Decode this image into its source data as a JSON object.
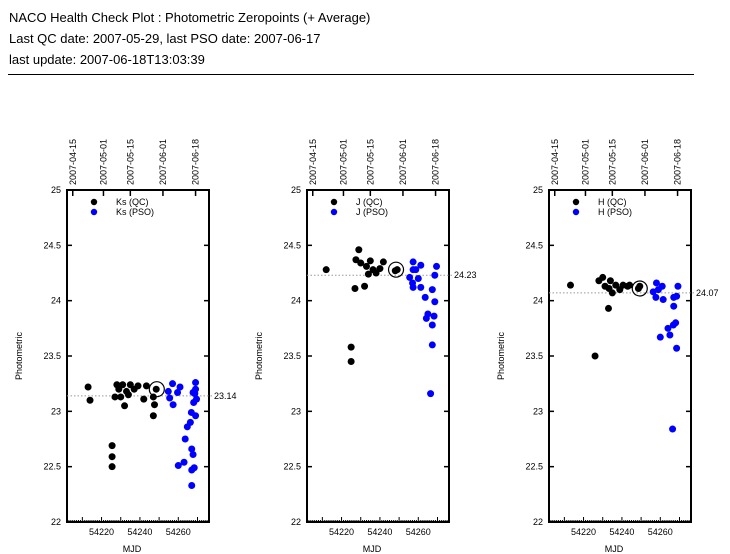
{
  "header": {
    "title": "NACO Health Check Plot : Photometric Zeropoints (+ Average)",
    "dates": "Last QC date: 2007-05-29, last PSO date: 2007-06-17",
    "update": "last update: 2007-06-18T13:03:39"
  },
  "colors": {
    "qc": "#000000",
    "pso": "#0000ff",
    "avg_line": "#999999"
  },
  "chart_data": [
    {
      "type": "scatter",
      "band": "Ks",
      "xlabel": "MJD",
      "ylabel": "Photometric",
      "xlim": [
        54202,
        54276
      ],
      "ylim": [
        22,
        25
      ],
      "yticks": [
        22,
        22.5,
        23,
        23.5,
        24,
        24.5,
        25
      ],
      "ytick_labels": [
        "22",
        "22.5",
        "23",
        "23.5",
        "24",
        "24.5",
        "25"
      ],
      "xticks": [
        54220,
        54240,
        54260
      ],
      "xtick_labels": [
        "54220",
        "54240",
        "54260"
      ],
      "top_ticks": [
        {
          "mjd": 54205,
          "label": "2007-04-15"
        },
        {
          "mjd": 54221,
          "label": "2007-05-01"
        },
        {
          "mjd": 54235,
          "label": "2007-05-15"
        },
        {
          "mjd": 54252,
          "label": "2007-06-01"
        },
        {
          "mjd": 54269,
          "label": "2007-06-18"
        }
      ],
      "legend": [
        "Ks (QC)",
        "Ks (PSO)"
      ],
      "legend_position": "top-left",
      "average": 23.14,
      "average_label": "23.14",
      "average_marker": [
        54248.8,
        23.2
      ],
      "series": [
        {
          "name": "Ks (QC)",
          "points": [
            [
              54213,
              23.22
            ],
            [
              54214,
              23.1
            ],
            [
              54225.5,
              22.69
            ],
            [
              54225.5,
              22.59
            ],
            [
              54225.5,
              22.5
            ],
            [
              54227,
              23.13
            ],
            [
              54228,
              23.24
            ],
            [
              54230,
              23.13
            ],
            [
              54232,
              23.05
            ],
            [
              54229,
              23.2
            ],
            [
              54231,
              23.24
            ],
            [
              54233,
              23.18
            ],
            [
              54234,
              23.15
            ],
            [
              54235,
              23.24
            ],
            [
              54237,
              23.2
            ],
            [
              54239,
              23.23
            ],
            [
              54242,
              23.11
            ],
            [
              54243.4,
              23.23
            ],
            [
              54247,
              23.13
            ],
            [
              54247.6,
              23.06
            ],
            [
              54247,
              22.96
            ],
            [
              54248.5,
              23.2
            ]
          ]
        },
        {
          "name": "Ks (PSO)",
          "points": [
            [
              54254.8,
              23.18
            ],
            [
              54257,
              23.25
            ],
            [
              54257.3,
              23.06
            ],
            [
              54255.5,
              23.12
            ],
            [
              54259.6,
              23.17
            ],
            [
              54260.9,
              23.22
            ],
            [
              54260,
              22.51
            ],
            [
              54263,
              22.54
            ],
            [
              54263.6,
              22.75
            ],
            [
              54264.7,
              22.86
            ],
            [
              54266.3,
              22.9
            ],
            [
              54267,
              22.66
            ],
            [
              54267.7,
              22.61
            ],
            [
              54267,
              22.47
            ],
            [
              54268.3,
              22.49
            ],
            [
              54267,
              22.33
            ],
            [
              54266.8,
              22.99
            ],
            [
              54269,
              22.96
            ],
            [
              54268,
              23.08
            ],
            [
              54268.6,
              23.16
            ],
            [
              54267.7,
              23.17
            ],
            [
              54269,
              23.26
            ],
            [
              54269,
              23.2
            ],
            [
              54269.5,
              23.11
            ]
          ]
        }
      ]
    },
    {
      "type": "scatter",
      "band": "J",
      "xlabel": "MJD",
      "ylabel": "Photometric",
      "xlim": [
        54202,
        54276
      ],
      "ylim": [
        22,
        25
      ],
      "yticks": [
        22,
        22.5,
        23,
        23.5,
        24,
        24.5,
        25
      ],
      "ytick_labels": [
        "22",
        "22.5",
        "23",
        "23.5",
        "24",
        "24.5",
        "25"
      ],
      "xticks": [
        54220,
        54240,
        54260
      ],
      "xtick_labels": [
        "54220",
        "54240",
        "54260"
      ],
      "top_ticks": [
        {
          "mjd": 54205,
          "label": "2007-04-15"
        },
        {
          "mjd": 54221,
          "label": "2007-05-01"
        },
        {
          "mjd": 54235,
          "label": "2007-05-15"
        },
        {
          "mjd": 54252,
          "label": "2007-06-01"
        },
        {
          "mjd": 54269,
          "label": "2007-06-18"
        }
      ],
      "legend": [
        "J (QC)",
        "J (PSO)"
      ],
      "legend_position": "top-left",
      "average": 24.23,
      "average_label": "24.23",
      "average_marker": [
        54248.4,
        24.28
      ],
      "series": [
        {
          "name": "J (QC)",
          "points": [
            [
              54212,
              24.28
            ],
            [
              54225,
              23.58
            ],
            [
              54225,
              23.45
            ],
            [
              54227,
              24.11
            ],
            [
              54229,
              24.46
            ],
            [
              54227.5,
              24.37
            ],
            [
              54230,
              24.34
            ],
            [
              54232,
              24.13
            ],
            [
              54233,
              24.31
            ],
            [
              54234,
              24.24
            ],
            [
              54235,
              24.36
            ],
            [
              54236.4,
              24.28
            ],
            [
              54238,
              24.25
            ],
            [
              54240,
              24.29
            ],
            [
              54241.8,
              24.35
            ],
            [
              54248,
              24.27
            ],
            [
              54249,
              24.28
            ]
          ]
        },
        {
          "name": "J (PSO)",
          "points": [
            [
              54257.3,
              24.35
            ],
            [
              54257.3,
              24.28
            ],
            [
              54255.5,
              24.21
            ],
            [
              54257,
              24.16
            ],
            [
              54257.3,
              24.12
            ],
            [
              54258.7,
              24.28
            ],
            [
              54260,
              24.2
            ],
            [
              54261.3,
              24.32
            ],
            [
              54261.3,
              24.12
            ],
            [
              54263.6,
              24.03
            ],
            [
              54265,
              23.88
            ],
            [
              54264.2,
              23.84
            ],
            [
              54267.3,
              24.1
            ],
            [
              54267.3,
              23.78
            ],
            [
              54267.3,
              23.6
            ],
            [
              54266.4,
              23.16
            ],
            [
              54268.2,
              23.86
            ],
            [
              54268.6,
              23.99
            ],
            [
              54268.6,
              24.23
            ],
            [
              54269.5,
              24.31
            ]
          ]
        }
      ]
    },
    {
      "type": "scatter",
      "band": "H",
      "xlabel": "MJD",
      "ylabel": "Photometric",
      "xlim": [
        54202,
        54276
      ],
      "ylim": [
        22,
        25
      ],
      "yticks": [
        22,
        22.5,
        23,
        23.5,
        24,
        24.5,
        25
      ],
      "ytick_labels": [
        "22",
        "22.5",
        "23",
        "23.5",
        "24",
        "24.5",
        "25"
      ],
      "xticks": [
        54220,
        54240,
        54260
      ],
      "xtick_labels": [
        "54220",
        "54240",
        "54260"
      ],
      "top_ticks": [
        {
          "mjd": 54205,
          "label": "2007-04-15"
        },
        {
          "mjd": 54221,
          "label": "2007-05-01"
        },
        {
          "mjd": 54235,
          "label": "2007-05-15"
        },
        {
          "mjd": 54252,
          "label": "2007-06-01"
        },
        {
          "mjd": 54269,
          "label": "2007-06-18"
        }
      ],
      "legend": [
        "H (QC)",
        "H (PSO)"
      ],
      "legend_position": "top-left",
      "average": 24.07,
      "average_label": "24.07",
      "average_marker": [
        54249.3,
        24.11
      ],
      "series": [
        {
          "name": "H (QC)",
          "points": [
            [
              54213.2,
              24.14
            ],
            [
              54226,
              23.5
            ],
            [
              54230,
              24.21
            ],
            [
              54228,
              24.18
            ],
            [
              54231.2,
              24.13
            ],
            [
              54233.3,
              24.11
            ],
            [
              54234,
              24.18
            ],
            [
              54235,
              24.07
            ],
            [
              54233,
              23.93
            ],
            [
              54236.8,
              24.14
            ],
            [
              54238.9,
              24.1
            ],
            [
              54240.6,
              24.14
            ],
            [
              54243,
              24.13
            ],
            [
              54244,
              24.14
            ],
            [
              54248.6,
              24.11
            ],
            [
              54249.3,
              24.13
            ]
          ]
        },
        {
          "name": "H (PSO)",
          "points": [
            [
              54258,
              24.16
            ],
            [
              54256.3,
              24.08
            ],
            [
              54257.7,
              24.03
            ],
            [
              54259,
              24.1
            ],
            [
              54261,
              24.13
            ],
            [
              54261.5,
              24.01
            ],
            [
              54260,
              23.67
            ],
            [
              54264,
              23.75
            ],
            [
              54265,
              23.69
            ],
            [
              54266.8,
              23.78
            ],
            [
              54268,
              23.8
            ],
            [
              54267,
              23.95
            ],
            [
              54267,
              24.03
            ],
            [
              54268.5,
              24.04
            ],
            [
              54269.2,
              24.13
            ],
            [
              54268.5,
              23.57
            ],
            [
              54266.4,
              22.84
            ]
          ]
        }
      ]
    }
  ]
}
